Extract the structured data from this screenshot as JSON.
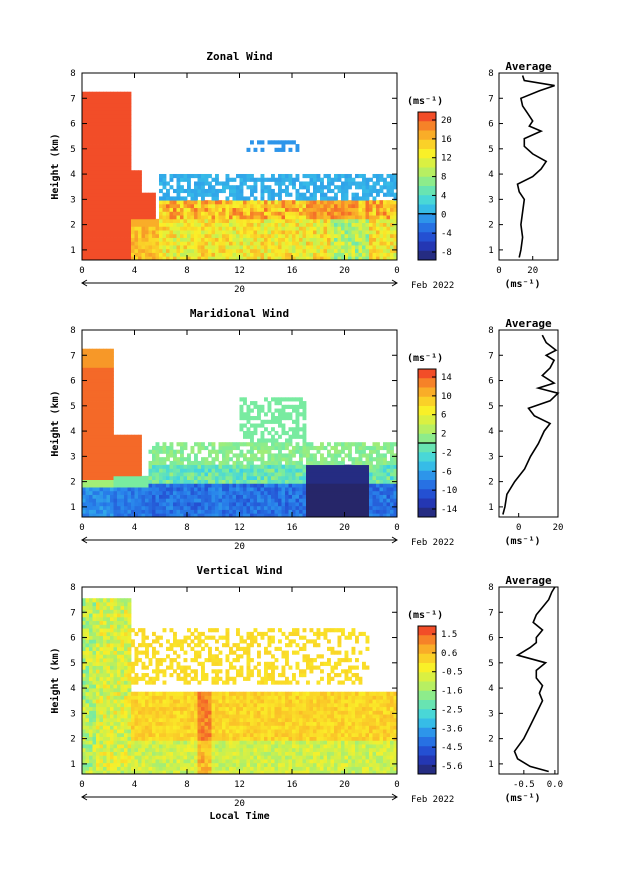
{
  "chart_data": [
    {
      "type": "heatmap",
      "title": "Zonal Wind",
      "ylabel": "Height (km)",
      "xticks": [
        "0",
        "4",
        "8",
        "12",
        "16",
        "20",
        "0"
      ],
      "yticks": [
        "1",
        "2",
        "3",
        "4",
        "5",
        "6",
        "7",
        "8"
      ],
      "date_day": "20",
      "date_label": "Feb 2022",
      "ylim": [
        0.6,
        8.0
      ],
      "xlim": [
        0,
        24
      ],
      "colorbar": {
        "unit": "(ms⁻¹)",
        "ticks": [
          "20",
          "16",
          "12",
          "8",
          "4",
          "0",
          "-4",
          "-8"
        ],
        "min": -10,
        "max": 22,
        "zero_contour": 0
      },
      "average": {
        "title": "Average",
        "xlabel": "(ms⁻¹)",
        "xticks": [
          "0",
          "20"
        ],
        "xlim": [
          0,
          35
        ],
        "height": [
          0.7,
          1.0,
          1.5,
          2.0,
          2.5,
          3.0,
          3.3,
          3.6,
          3.9,
          4.2,
          4.5,
          4.8,
          5.1,
          5.4,
          5.7,
          5.9,
          6.1,
          6.4,
          6.7,
          7.0,
          7.3,
          7.5,
          7.7,
          7.9
        ],
        "value": [
          12,
          13,
          14,
          13,
          14,
          15,
          12,
          11,
          20,
          25,
          28,
          20,
          15,
          15,
          25,
          18,
          20,
          17,
          14,
          13,
          24,
          33,
          15,
          14
        ]
      }
    },
    {
      "type": "heatmap",
      "title": "Maridional Wind",
      "ylabel": "Height (km)",
      "xticks": [
        "0",
        "4",
        "8",
        "12",
        "16",
        "20",
        "0"
      ],
      "yticks": [
        "1",
        "2",
        "3",
        "4",
        "5",
        "6",
        "7",
        "8"
      ],
      "date_day": "20",
      "date_label": "Feb 2022",
      "ylim": [
        0.6,
        8.0
      ],
      "xlim": [
        0,
        24
      ],
      "colorbar": {
        "unit": "(ms⁻¹)",
        "ticks": [
          "14",
          "10",
          "6",
          "2",
          "-2",
          "-6",
          "-10",
          "-14"
        ],
        "min": -16,
        "max": 16,
        "zero_contour": 0
      },
      "average": {
        "title": "Average",
        "xlabel": "(ms⁻¹)",
        "xticks": [
          "0",
          "20"
        ],
        "xlim": [
          -10,
          20
        ],
        "height": [
          0.7,
          1.0,
          1.5,
          2.0,
          2.5,
          3.0,
          3.5,
          4.0,
          4.3,
          4.6,
          4.9,
          5.2,
          5.5,
          5.7,
          5.9,
          6.2,
          6.5,
          6.8,
          7.0,
          7.2,
          7.5,
          7.8
        ],
        "value": [
          -8,
          -7,
          -6,
          -2,
          3,
          6,
          10,
          13,
          16,
          8,
          5,
          16,
          20,
          10,
          18,
          12,
          16,
          18,
          14,
          19,
          14,
          12
        ]
      }
    },
    {
      "type": "heatmap",
      "title": "Vertical Wind",
      "ylabel": "Height (km)",
      "xlabel": "Local Time",
      "xticks": [
        "0",
        "4",
        "8",
        "12",
        "16",
        "20",
        "0"
      ],
      "yticks": [
        "1",
        "2",
        "3",
        "4",
        "5",
        "6",
        "7",
        "8"
      ],
      "date_day": "20",
      "date_label": "Feb 2022",
      "ylim": [
        0.6,
        8.0
      ],
      "xlim": [
        0,
        24
      ],
      "colorbar": {
        "unit": "(ms⁻¹)",
        "ticks": [
          "1.5",
          "0.6",
          "-0.5",
          "-1.6",
          "-2.5",
          "-3.6",
          "-4.5",
          "-5.6"
        ],
        "min": -6,
        "max": 2
      },
      "average": {
        "title": "Average",
        "xlabel": "(ms⁻¹)",
        "xticks": [
          "-0.5",
          "0.0"
        ],
        "xlim": [
          -0.9,
          0.05
        ],
        "height": [
          0.7,
          0.9,
          1.2,
          1.5,
          2.0,
          2.5,
          3.0,
          3.5,
          3.8,
          4.1,
          4.4,
          4.7,
          5.0,
          5.3,
          5.6,
          5.8,
          6.0,
          6.3,
          6.6,
          6.9,
          7.2,
          7.5,
          7.8,
          8.0
        ],
        "value": [
          -0.1,
          -0.4,
          -0.6,
          -0.65,
          -0.5,
          -0.4,
          -0.3,
          -0.2,
          -0.25,
          -0.2,
          -0.3,
          -0.3,
          -0.15,
          -0.6,
          -0.4,
          -0.3,
          -0.3,
          -0.2,
          -0.35,
          -0.3,
          -0.2,
          -0.1,
          -0.05,
          0.0
        ]
      }
    }
  ]
}
